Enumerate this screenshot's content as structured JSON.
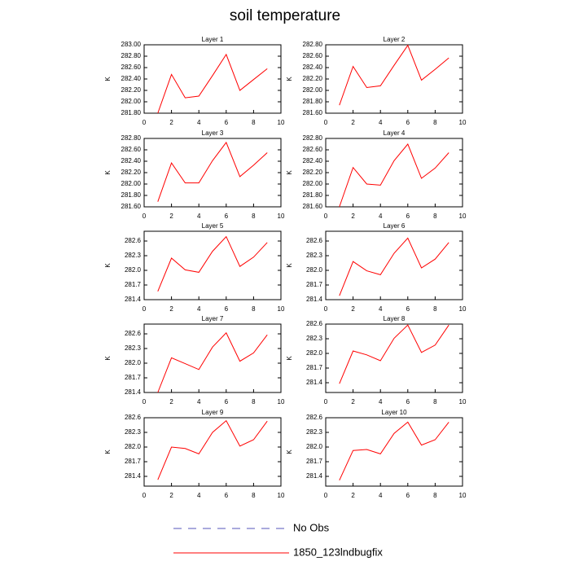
{
  "title": "soil temperature",
  "legend": [
    {
      "name": "No Obs",
      "color": "#5555bb",
      "dash": true
    },
    {
      "name": "1850_123lndbugfix",
      "color": "#ff0000",
      "dash": false
    }
  ],
  "chart_data": [
    {
      "type": "line",
      "title": "Layer 1",
      "ylabel": "K",
      "x": [
        1,
        2,
        3,
        4,
        5,
        6,
        7,
        8,
        9
      ],
      "values": [
        281.8,
        282.48,
        282.07,
        282.1,
        282.46,
        282.83,
        282.2,
        282.39,
        282.58
      ],
      "color": "#ff0000",
      "xlim": [
        0,
        10
      ],
      "xticks": [
        0,
        2,
        4,
        6,
        8,
        10
      ],
      "ylim": [
        281.8,
        283.0
      ],
      "yticks": [
        {
          "value": 281.8,
          "label": "281.80"
        },
        {
          "value": 282.0,
          "label": "282.00"
        },
        {
          "value": 282.2,
          "label": "282.20"
        },
        {
          "value": 282.4,
          "label": "282.40"
        },
        {
          "value": 282.6,
          "label": "282.60"
        },
        {
          "value": 282.8,
          "label": "282.80"
        },
        {
          "value": 283.0,
          "label": "283.00"
        }
      ]
    },
    {
      "type": "line",
      "title": "Layer 2",
      "ylabel": "K",
      "x": [
        1,
        2,
        3,
        4,
        5,
        6,
        7,
        8,
        9
      ],
      "values": [
        281.74,
        282.42,
        282.05,
        282.08,
        282.44,
        282.79,
        282.18,
        282.37,
        282.57
      ],
      "color": "#ff0000",
      "xlim": [
        0,
        10
      ],
      "xticks": [
        0,
        2,
        4,
        6,
        8,
        10
      ],
      "ylim": [
        281.6,
        282.8
      ],
      "yticks": [
        {
          "value": 281.6,
          "label": "281.60"
        },
        {
          "value": 281.8,
          "label": "281.80"
        },
        {
          "value": 282.0,
          "label": "282.00"
        },
        {
          "value": 282.2,
          "label": "282.20"
        },
        {
          "value": 282.4,
          "label": "282.40"
        },
        {
          "value": 282.6,
          "label": "282.60"
        },
        {
          "value": 282.8,
          "label": "282.80"
        }
      ]
    },
    {
      "type": "line",
      "title": "Layer 3",
      "ylabel": "K",
      "x": [
        1,
        2,
        3,
        4,
        5,
        6,
        7,
        8,
        9
      ],
      "values": [
        281.69,
        282.37,
        282.02,
        282.02,
        282.41,
        282.73,
        282.13,
        282.33,
        282.55
      ],
      "color": "#ff0000",
      "xlim": [
        0,
        10
      ],
      "xticks": [
        0,
        2,
        4,
        6,
        8,
        10
      ],
      "ylim": [
        281.6,
        282.8
      ],
      "yticks": [
        {
          "value": 281.6,
          "label": "281.60"
        },
        {
          "value": 281.8,
          "label": "281.80"
        },
        {
          "value": 282.0,
          "label": "282.00"
        },
        {
          "value": 282.2,
          "label": "282.20"
        },
        {
          "value": 282.4,
          "label": "282.40"
        },
        {
          "value": 282.6,
          "label": "282.60"
        },
        {
          "value": 282.8,
          "label": "282.80"
        }
      ]
    },
    {
      "type": "line",
      "title": "Layer 4",
      "ylabel": "K",
      "x": [
        1,
        2,
        3,
        4,
        5,
        6,
        7,
        8,
        9
      ],
      "values": [
        281.6,
        282.29,
        282.0,
        281.98,
        282.41,
        282.7,
        282.1,
        282.28,
        282.55
      ],
      "color": "#ff0000",
      "xlim": [
        0,
        10
      ],
      "xticks": [
        0,
        2,
        4,
        6,
        8,
        10
      ],
      "ylim": [
        281.6,
        282.8
      ],
      "yticks": [
        {
          "value": 281.6,
          "label": "281.60"
        },
        {
          "value": 281.8,
          "label": "281.80"
        },
        {
          "value": 282.0,
          "label": "282.00"
        },
        {
          "value": 282.2,
          "label": "282.20"
        },
        {
          "value": 282.4,
          "label": "282.40"
        },
        {
          "value": 282.6,
          "label": "282.60"
        },
        {
          "value": 282.8,
          "label": "282.80"
        }
      ]
    },
    {
      "type": "line",
      "title": "Layer 5",
      "ylabel": "K",
      "x": [
        1,
        2,
        3,
        4,
        5,
        6,
        7,
        8,
        9
      ],
      "values": [
        281.57,
        282.25,
        282.01,
        281.96,
        282.39,
        282.69,
        282.08,
        282.27,
        282.57
      ],
      "color": "#ff0000",
      "xlim": [
        0,
        10
      ],
      "xticks": [
        0,
        2,
        4,
        6,
        8,
        10
      ],
      "ylim": [
        281.4,
        282.8
      ],
      "yticks": [
        281.4,
        281.7,
        {
          "value": 282.0,
          "label": "282.0"
        },
        282.3,
        282.6
      ]
    },
    {
      "type": "line",
      "title": "Layer 6",
      "ylabel": "K",
      "x": [
        1,
        2,
        3,
        4,
        5,
        6,
        7,
        8,
        9
      ],
      "values": [
        281.48,
        282.18,
        281.99,
        281.91,
        282.35,
        282.66,
        282.05,
        282.23,
        282.57
      ],
      "color": "#ff0000",
      "xlim": [
        0,
        10
      ],
      "xticks": [
        0,
        2,
        4,
        6,
        8,
        10
      ],
      "ylim": [
        281.4,
        282.8
      ],
      "yticks": [
        281.4,
        281.7,
        {
          "value": 282.0,
          "label": "282.0"
        },
        282.3,
        282.6
      ]
    },
    {
      "type": "line",
      "title": "Layer 7",
      "ylabel": "K",
      "x": [
        1,
        2,
        3,
        4,
        5,
        6,
        7,
        8,
        9
      ],
      "values": [
        281.4,
        282.11,
        281.99,
        281.87,
        282.33,
        282.62,
        282.04,
        282.21,
        282.58
      ],
      "color": "#ff0000",
      "xlim": [
        0,
        10
      ],
      "xticks": [
        0,
        2,
        4,
        6,
        8,
        10
      ],
      "ylim": [
        281.4,
        282.8
      ],
      "yticks": [
        281.4,
        281.7,
        {
          "value": 282.0,
          "label": "282.0"
        },
        282.3,
        282.6
      ]
    },
    {
      "type": "line",
      "title": "Layer 8",
      "ylabel": "K",
      "x": [
        1,
        2,
        3,
        4,
        5,
        6,
        7,
        8,
        9
      ],
      "values": [
        281.38,
        282.05,
        281.97,
        281.85,
        282.31,
        282.58,
        282.02,
        282.17,
        282.58
      ],
      "color": "#ff0000",
      "xlim": [
        0,
        10
      ],
      "xticks": [
        0,
        2,
        4,
        6,
        8,
        10
      ],
      "ylim": [
        281.2,
        282.6
      ],
      "yticks": [
        281.4,
        281.7,
        {
          "value": 282.0,
          "label": "282.0"
        },
        282.3,
        282.6
      ]
    },
    {
      "type": "line",
      "title": "Layer 9",
      "ylabel": "K",
      "x": [
        1,
        2,
        3,
        4,
        5,
        6,
        7,
        8,
        9
      ],
      "values": [
        281.33,
        282.0,
        281.97,
        281.86,
        282.3,
        282.54,
        282.02,
        282.15,
        282.53
      ],
      "color": "#ff0000",
      "xlim": [
        0,
        10
      ],
      "xticks": [
        0,
        2,
        4,
        6,
        8,
        10
      ],
      "ylim": [
        281.2,
        282.6
      ],
      "yticks": [
        281.4,
        281.7,
        {
          "value": 282.0,
          "label": "282.0"
        },
        282.3,
        282.6
      ]
    },
    {
      "type": "line",
      "title": "Layer 10",
      "ylabel": "K",
      "x": [
        1,
        2,
        3,
        4,
        5,
        6,
        7,
        8,
        9
      ],
      "values": [
        281.32,
        281.93,
        281.95,
        281.86,
        282.28,
        282.51,
        282.04,
        282.15,
        282.51
      ],
      "color": "#ff0000",
      "xlim": [
        0,
        10
      ],
      "xticks": [
        0,
        2,
        4,
        6,
        8,
        10
      ],
      "ylim": [
        281.2,
        282.6
      ],
      "yticks": [
        281.4,
        281.7,
        {
          "value": 282.0,
          "label": "282.0"
        },
        282.3,
        282.6
      ]
    }
  ]
}
